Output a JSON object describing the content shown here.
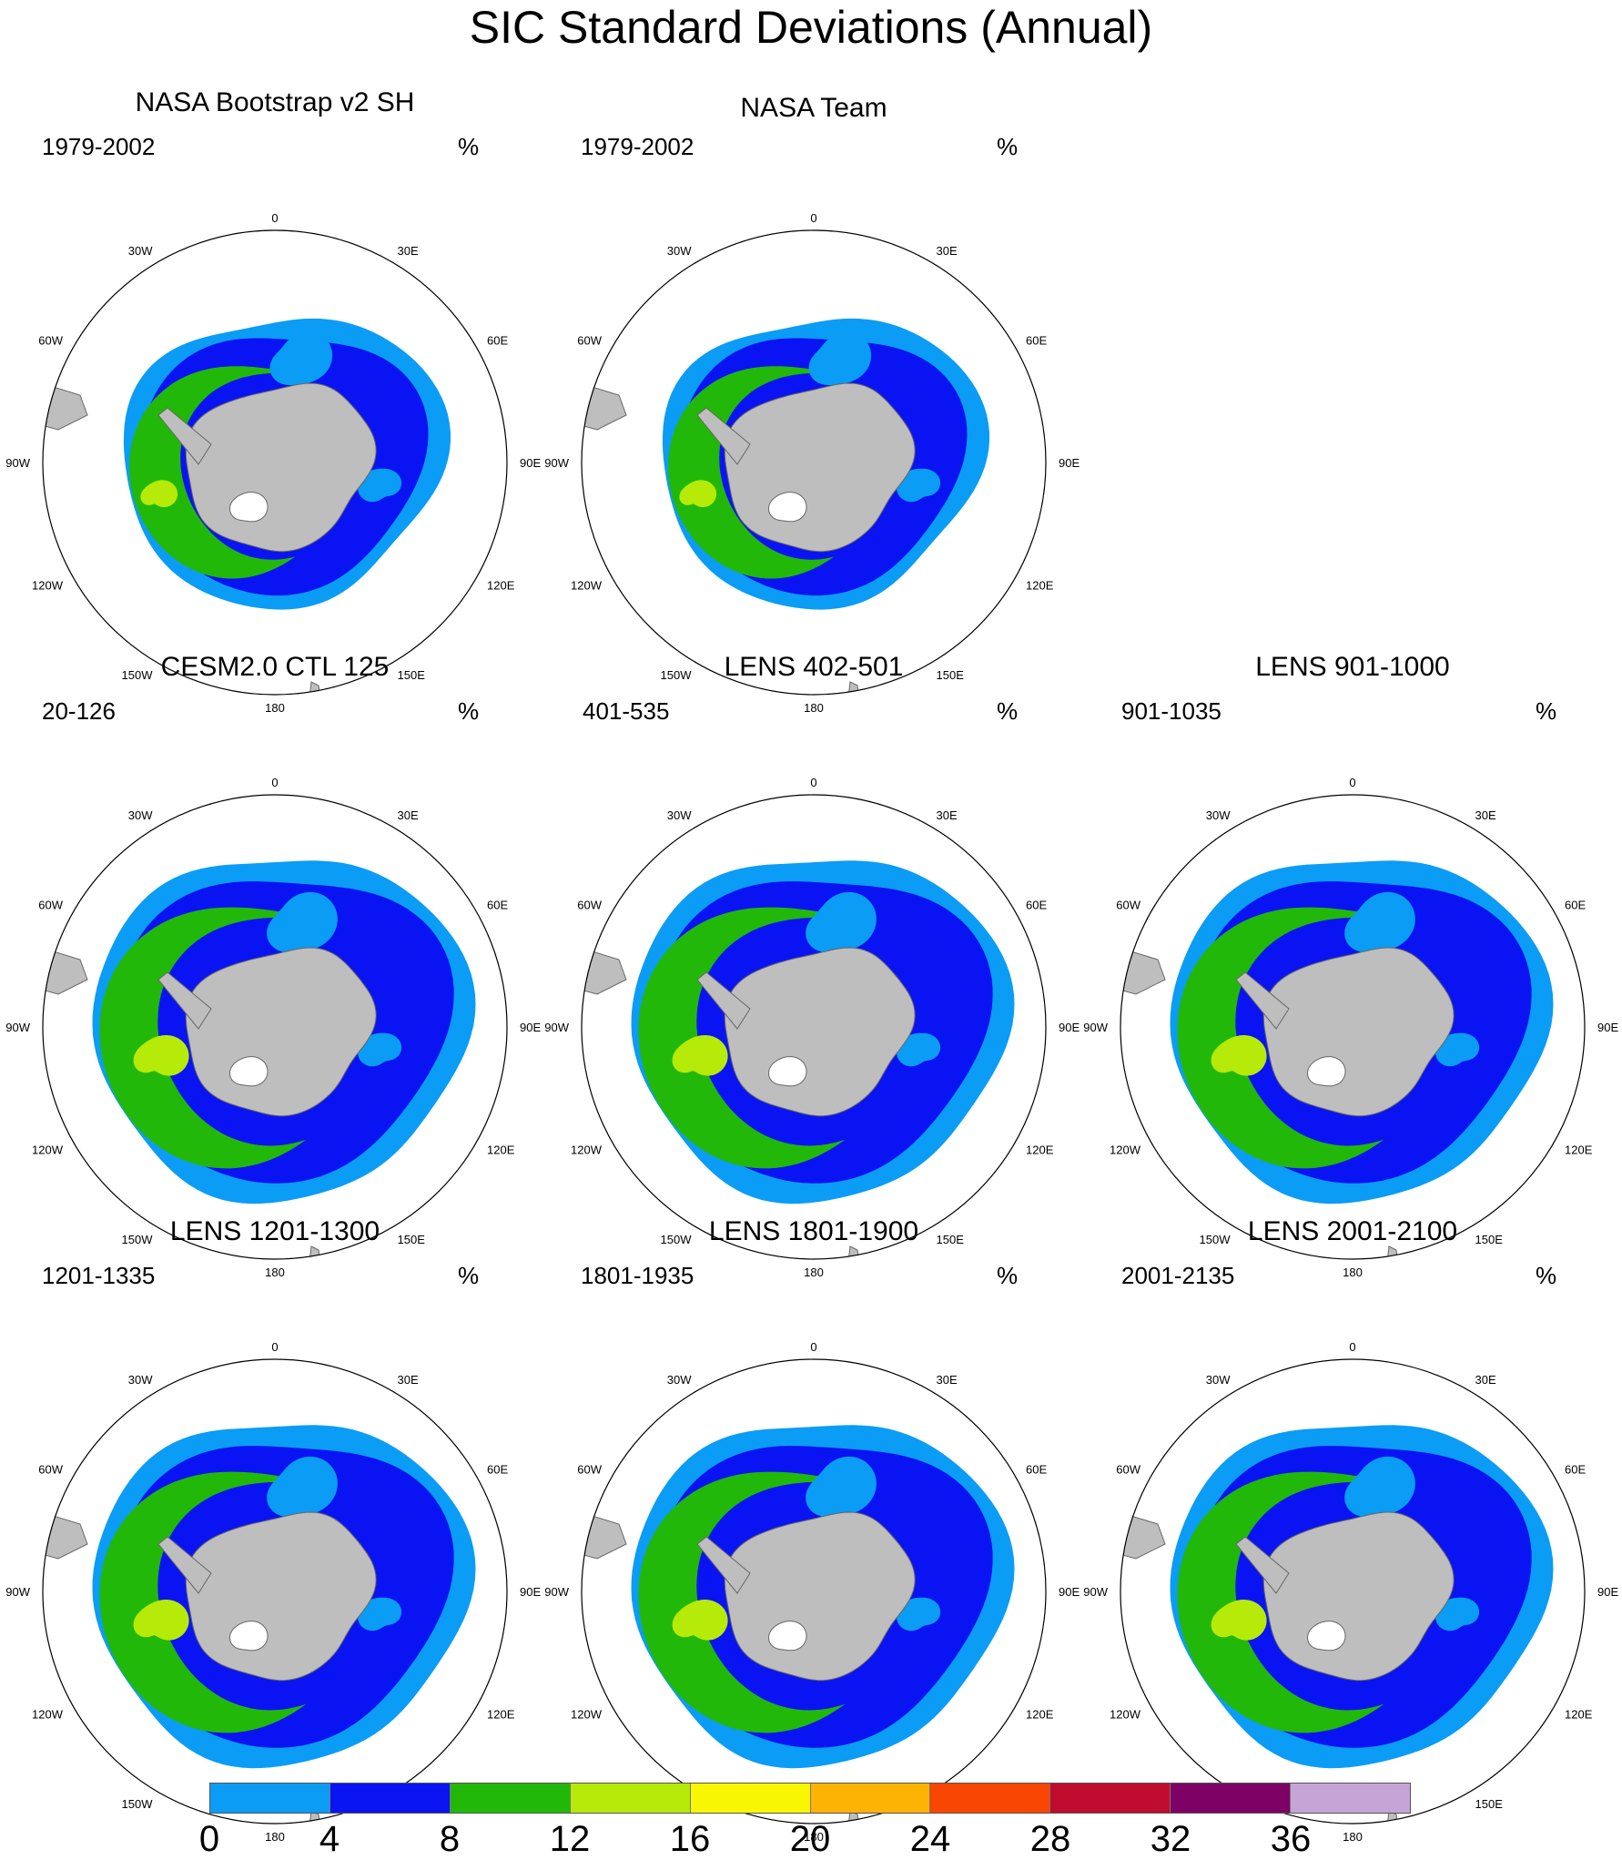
{
  "figure": {
    "title": "SIC Standard Deviations (Annual)"
  },
  "longitude_labels": [
    "0",
    "30E",
    "60E",
    "90E",
    "120E",
    "150E",
    "180",
    "150W",
    "120W",
    "90W",
    "60W",
    "30W"
  ],
  "panels": [
    {
      "title": "NASA Bootstrap v2 SH",
      "years": "1979-2002",
      "units": "%"
    },
    {
      "title": "NASA Team",
      "years": "1979-2002",
      "units": "%"
    },
    {
      "title": "CESM2.0 CTL 125",
      "years": "20-126",
      "units": "%"
    },
    {
      "title": "LENS 402-501",
      "years": "401-535",
      "units": "%"
    },
    {
      "title": "LENS 901-1000",
      "years": "901-1035",
      "units": "%"
    },
    {
      "title": "LENS 1201-1300",
      "years": "1201-1335",
      "units": "%"
    },
    {
      "title": "LENS 1801-1900",
      "years": "1801-1935",
      "units": "%"
    },
    {
      "title": "LENS 2001-2100",
      "years": "2001-2135",
      "units": "%"
    }
  ],
  "colorbar": {
    "labels": [
      "0",
      "4",
      "8",
      "12",
      "16",
      "20",
      "24",
      "28",
      "32",
      "36"
    ],
    "colors": [
      "#0b9cf5",
      "#0a14f2",
      "#22b809",
      "#b6ea08",
      "#f9f603",
      "#fcb304",
      "#fa4603",
      "#bf0b2e",
      "#7e0166",
      "#c6a4d6"
    ]
  }
}
